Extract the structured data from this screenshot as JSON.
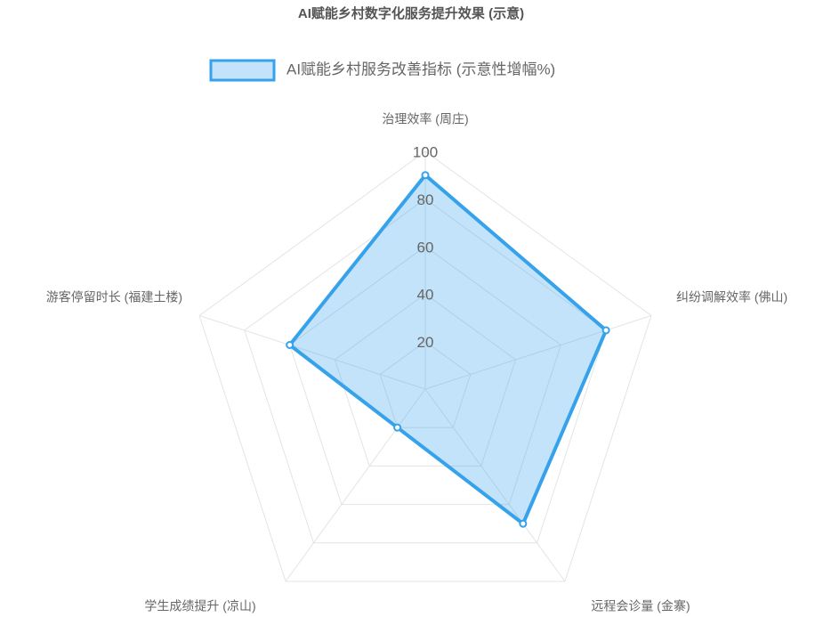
{
  "chart_data": {
    "type": "radar",
    "title": "AI赋能乡村数字化服务提升效果 (示意)",
    "categories": [
      "治理效率 (周庄)",
      "纠纷调解效率 (佛山)",
      "远程会诊量 (金寨)",
      "学生成绩提升 (凉山)",
      "游客停留时长 (福建土楼)"
    ],
    "series": [
      {
        "name": "AI赋能乡村服务改善指标 (示意性增幅%)",
        "color": "#36a2eb",
        "values": [
          90,
          80,
          70,
          20,
          60
        ]
      }
    ],
    "ylim": [
      0,
      100
    ],
    "yticks": [
      20,
      40,
      60,
      80,
      100
    ],
    "grid": true
  }
}
